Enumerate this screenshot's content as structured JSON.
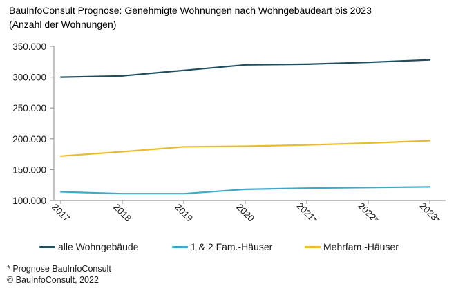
{
  "title": {
    "line1": "BauInfoConsult Prognose: Genehmigte Wohnungen nach Wohngebäudeart bis 2023",
    "line2": "(Anzahl der Wohnungen)"
  },
  "chart_data": {
    "type": "line",
    "categories": [
      "2017",
      "2018",
      "2019",
      "2020",
      "2021*",
      "2022*",
      "2023*"
    ],
    "series": [
      {
        "name": "alle Wohngebäude",
        "color": "#1F4E5F",
        "values": [
          300000,
          302000,
          311000,
          320000,
          321000,
          324000,
          328000
        ]
      },
      {
        "name": "1 & 2 Fam.-Häuser",
        "color": "#3FA9C9",
        "values": [
          114000,
          111000,
          111000,
          118000,
          120000,
          121000,
          122000
        ]
      },
      {
        "name": "Mehrfam.-Häuser",
        "color": "#E9BC2D",
        "values": [
          172000,
          179000,
          187000,
          188000,
          190000,
          193000,
          197000
        ]
      }
    ],
    "y_axis": {
      "min": 100000,
      "max": 350000,
      "ticks": [
        {
          "value": 350000,
          "label": "350.000"
        },
        {
          "value": 300000,
          "label": "300.000"
        },
        {
          "value": 250000,
          "label": "250.000"
        },
        {
          "value": 200000,
          "label": "200.000"
        },
        {
          "value": 150000,
          "label": "150.000"
        },
        {
          "value": 100000,
          "label": "100.000"
        }
      ]
    },
    "grid": false,
    "legend_position": "bottom",
    "axis_color": "#9b9b9b",
    "title": "BauInfoConsult Prognose: Genehmigte Wohnungen nach Wohngebäudeart bis 2023 (Anzahl der Wohnungen)",
    "xlabel": "",
    "ylabel": ""
  },
  "footnotes": {
    "line1": "* Prognose BauInfoConsult",
    "line2": "© BauInfoConsult, 2022"
  }
}
